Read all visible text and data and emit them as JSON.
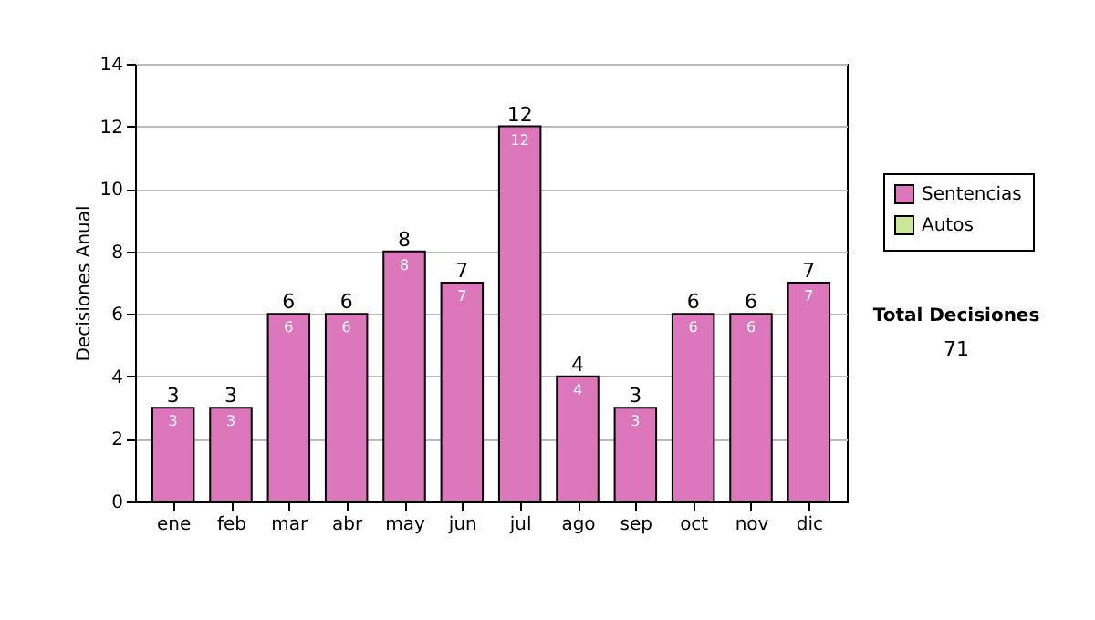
{
  "chart_data": {
    "type": "bar",
    "ylabel": "Decisiones Anual",
    "categories": [
      "ene",
      "feb",
      "mar",
      "abr",
      "may",
      "jun",
      "jul",
      "ago",
      "sep",
      "oct",
      "nov",
      "dic"
    ],
    "series": [
      {
        "name": "Sentencias",
        "color": "#dd77bb",
        "values": [
          3,
          3,
          6,
          6,
          8,
          7,
          12,
          4,
          3,
          6,
          6,
          7
        ]
      },
      {
        "name": "Autos",
        "color": "#cce699",
        "values": [
          null,
          null,
          null,
          null,
          null,
          null,
          null,
          null,
          null,
          null,
          null,
          null
        ]
      }
    ],
    "stacked": true,
    "data_labels": true,
    "totals": [
      "3",
      "3",
      "6",
      "6",
      "8",
      "7",
      "12",
      "4",
      "3",
      "6",
      "6",
      "7"
    ],
    "ylim": [
      0,
      14
    ],
    "yticks": [
      0,
      2,
      4,
      6,
      8,
      10,
      12,
      14
    ],
    "grid": "y",
    "legend": "right",
    "annotations": [
      "Total Decisiones",
      "71"
    ]
  }
}
